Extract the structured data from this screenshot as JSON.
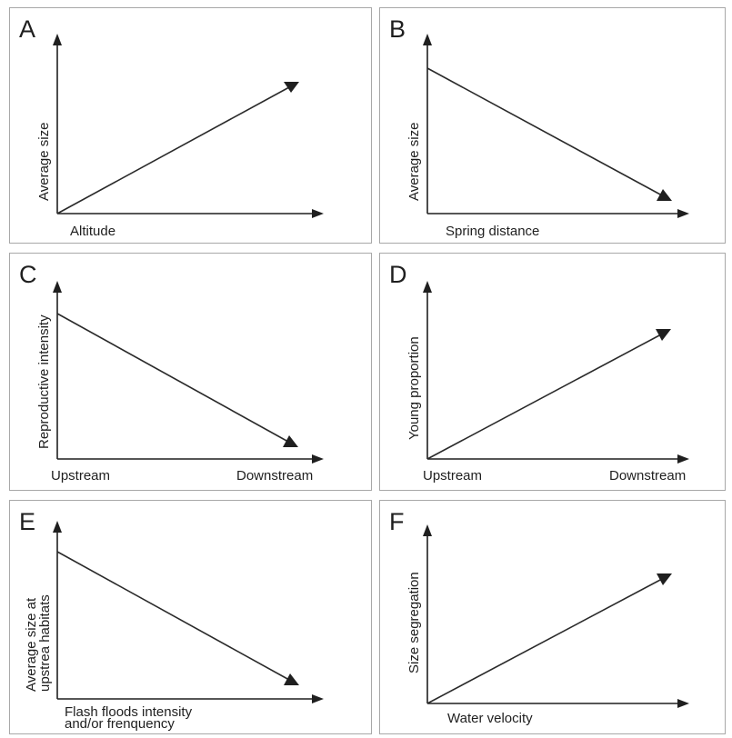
{
  "panels": [
    {
      "letter": "A",
      "xlabel": "Altitude",
      "ylabel": "Average size",
      "trend": "increasing"
    },
    {
      "letter": "B",
      "xlabel": "Spring distance",
      "ylabel": "Average size",
      "trend": "decreasing"
    },
    {
      "letter": "C",
      "xlabel_left": "Upstream",
      "xlabel_right": "Downstream",
      "ylabel": "Reproductive intensity",
      "trend": "decreasing"
    },
    {
      "letter": "D",
      "xlabel_left": "Upstream",
      "xlabel_right": "Downstream",
      "ylabel": "Young proportion",
      "trend": "increasing"
    },
    {
      "letter": "E",
      "xlabel_line1": "Flash floods intensity",
      "xlabel_line2": "and/or frenquency",
      "ylabel_line1": "Average size at",
      "ylabel_line2": "upstrea habitats",
      "trend": "decreasing"
    },
    {
      "letter": "F",
      "xlabel": "Water velocity",
      "ylabel": "Size segregation",
      "trend": "increasing"
    }
  ]
}
